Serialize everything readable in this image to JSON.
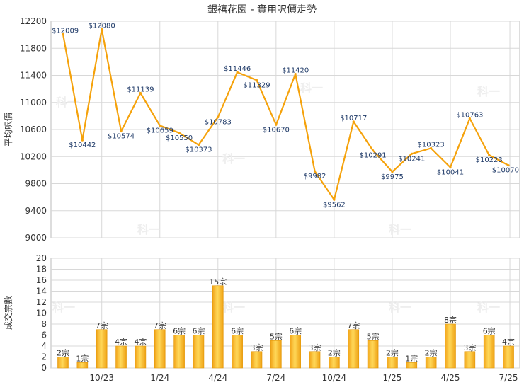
{
  "title": "銀禧花園 - 實用呎價走勢",
  "watermark": "科一",
  "colors": {
    "accent": "#f5a623",
    "line": "#f5a20b",
    "bar_light": "#ffd24a",
    "bar_dark": "#f0a010",
    "grid": "#d8d8d8",
    "text": "#333333",
    "label_blue": "#1f3a68"
  },
  "chart_data": [
    {
      "type": "line",
      "ylabel": "平均呎價",
      "ylim": [
        9000,
        12200
      ],
      "yticks": [
        "9000",
        "9400",
        "9800",
        "10200",
        "10600",
        "11000",
        "11400",
        "11800",
        "12200"
      ],
      "grid": true,
      "series": [
        {
          "values": [
            12009,
            10442,
            12080,
            10574,
            11139,
            10659,
            10550,
            10373,
            10783,
            11446,
            11329,
            10670,
            11420,
            9982,
            9562,
            10717,
            10291,
            9975,
            10241,
            10323,
            10041,
            10763,
            10223,
            10070
          ],
          "labels": [
            "$12009",
            "$10442",
            "$12080",
            "$10574",
            "$11139",
            "$10659",
            "$10550",
            "$10373",
            "$10783",
            "$11446",
            "$11329",
            "$10670",
            "$11420",
            "$9982",
            "$9562",
            "$10717",
            "$10291",
            "$9975",
            "$10241",
            "$10323",
            "$10041",
            "$10763",
            "$10223",
            "$10070"
          ]
        }
      ]
    },
    {
      "type": "bar",
      "ylabel": "成交宗數",
      "ylim": [
        0,
        20
      ],
      "yticks": [
        "0",
        "2",
        "4",
        "6",
        "8",
        "10",
        "12",
        "14",
        "16",
        "18",
        "20"
      ],
      "grid": true,
      "values": [
        2,
        1,
        7,
        4,
        4,
        7,
        6,
        6,
        15,
        6,
        3,
        5,
        6,
        3,
        2,
        7,
        5,
        2,
        1,
        2,
        8,
        3,
        6,
        4
      ],
      "labels": [
        "2宗",
        "1宗",
        "7宗",
        "4宗",
        "4宗",
        "7宗",
        "6宗",
        "6宗",
        "15宗",
        "6宗",
        "3宗",
        "5宗",
        "6宗",
        "3宗",
        "2宗",
        "7宗",
        "5宗",
        "2宗",
        "1宗",
        "2宗",
        "8宗",
        "3宗",
        "6宗",
        "4宗"
      ],
      "xtick_labels": [
        {
          "index": 2,
          "label": "10/23"
        },
        {
          "index": 5,
          "label": "1/24"
        },
        {
          "index": 8,
          "label": "4/24"
        },
        {
          "index": 11,
          "label": "7/24"
        },
        {
          "index": 14,
          "label": "10/24"
        },
        {
          "index": 17,
          "label": "1/25"
        },
        {
          "index": 20,
          "label": "4/25"
        },
        {
          "index": 23,
          "label": "7/25"
        }
      ]
    }
  ]
}
